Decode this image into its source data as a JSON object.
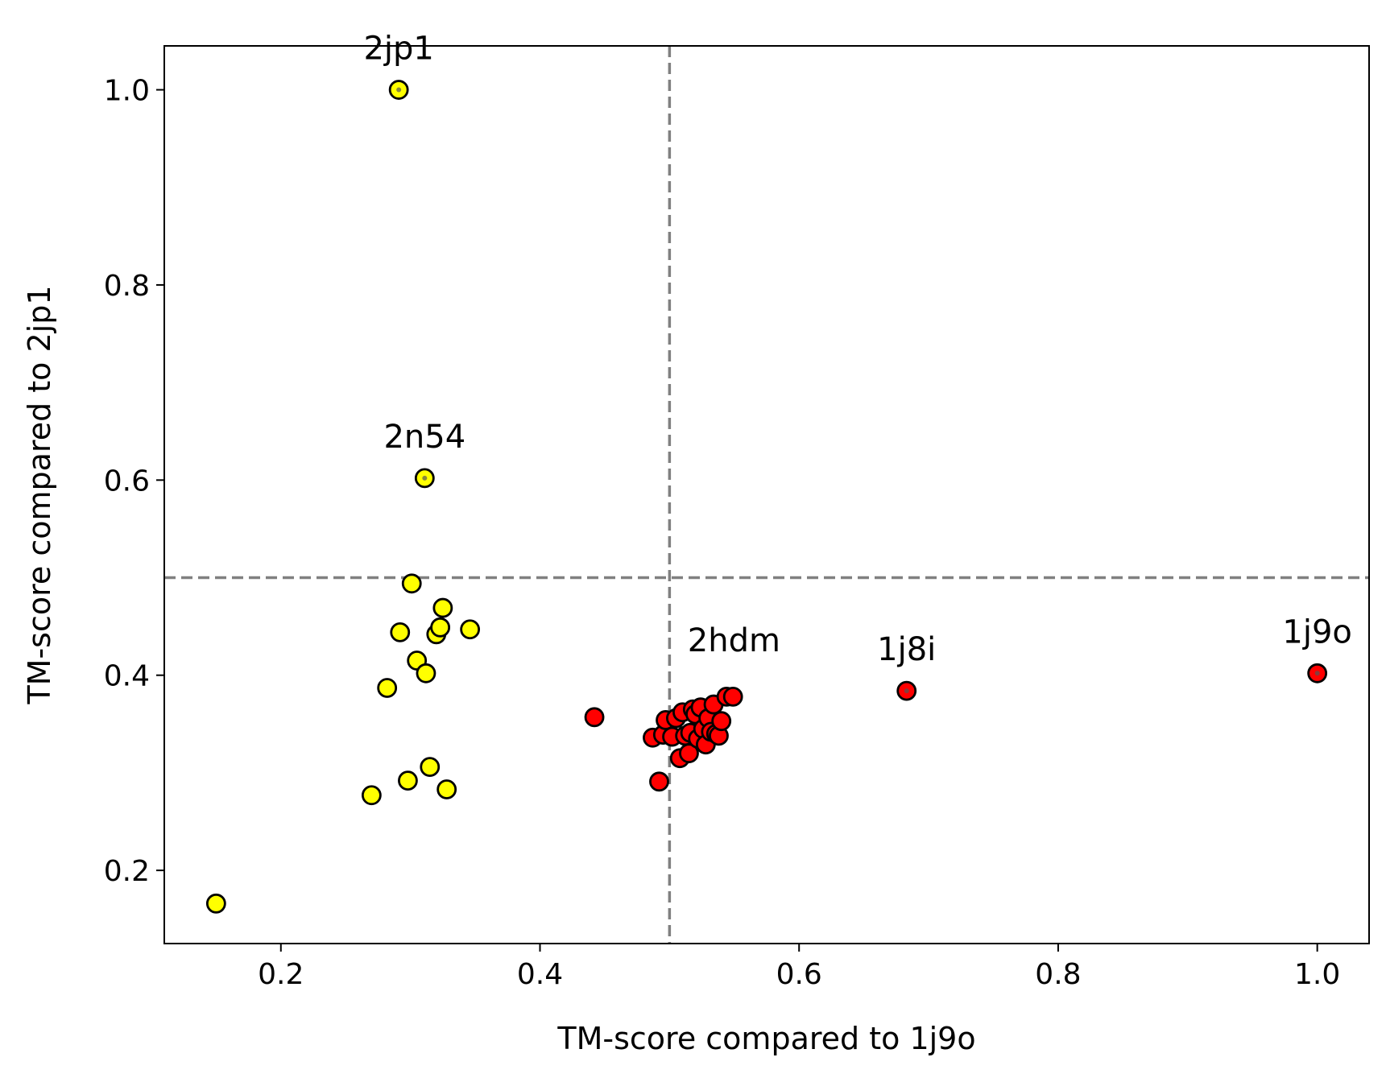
{
  "chart_data": {
    "type": "scatter",
    "xlabel": "TM-score compared to 1j9o",
    "ylabel": "TM-score compared to 2jp1",
    "xlim": [
      0.11,
      1.04
    ],
    "ylim": [
      0.125,
      1.045
    ],
    "xticks": [
      0.2,
      0.4,
      0.6,
      0.8,
      1.0
    ],
    "xtick_labels": [
      "0.2",
      "0.4",
      "0.6",
      "0.8",
      "1.0"
    ],
    "yticks": [
      0.2,
      0.4,
      0.6,
      0.8,
      1.0
    ],
    "ytick_labels": [
      "0.2",
      "0.4",
      "0.6",
      "0.8",
      "1.0"
    ],
    "grid": false,
    "reference_lines": {
      "x": 0.5,
      "y": 0.5,
      "style": "dashed",
      "color": "#808080"
    },
    "series": [
      {
        "color": "#ffff00",
        "points": [
          [
            0.15,
            0.166
          ],
          [
            0.27,
            0.277
          ],
          [
            0.282,
            0.387
          ],
          [
            0.292,
            0.444
          ],
          [
            0.298,
            0.292
          ],
          [
            0.301,
            0.494
          ],
          [
            0.305,
            0.415
          ],
          [
            0.312,
            0.402
          ],
          [
            0.315,
            0.306
          ],
          [
            0.32,
            0.442
          ],
          [
            0.323,
            0.449
          ],
          [
            0.325,
            0.469
          ],
          [
            0.328,
            0.283
          ],
          [
            0.346,
            0.447
          ],
          [
            0.291,
            1.0
          ],
          [
            0.311,
            0.602
          ]
        ]
      },
      {
        "color": "#ff0000",
        "points": [
          [
            0.442,
            0.357
          ],
          [
            0.487,
            0.336
          ],
          [
            0.492,
            0.291
          ],
          [
            0.495,
            0.339
          ],
          [
            0.497,
            0.354
          ],
          [
            0.502,
            0.337
          ],
          [
            0.505,
            0.356
          ],
          [
            0.508,
            0.315
          ],
          [
            0.51,
            0.362
          ],
          [
            0.512,
            0.338
          ],
          [
            0.515,
            0.32
          ],
          [
            0.516,
            0.341
          ],
          [
            0.518,
            0.365
          ],
          [
            0.52,
            0.36
          ],
          [
            0.522,
            0.335
          ],
          [
            0.524,
            0.367
          ],
          [
            0.526,
            0.345
          ],
          [
            0.528,
            0.329
          ],
          [
            0.53,
            0.356
          ],
          [
            0.532,
            0.342
          ],
          [
            0.534,
            0.37
          ],
          [
            0.536,
            0.34
          ],
          [
            0.538,
            0.338
          ],
          [
            0.54,
            0.353
          ],
          [
            0.544,
            0.378
          ],
          [
            0.549,
            0.378
          ],
          [
            0.683,
            0.384
          ],
          [
            1.0,
            0.402
          ]
        ]
      }
    ],
    "reference_markers": [
      [
        0.291,
        1.0
      ],
      [
        0.311,
        0.602
      ],
      [
        0.683,
        0.384
      ],
      [
        1.0,
        0.402
      ]
    ],
    "annotations": [
      {
        "text": "2jp1",
        "x": 0.291,
        "y": 1.0
      },
      {
        "text": "2n54",
        "x": 0.311,
        "y": 0.602
      },
      {
        "text": "2hdm",
        "x": 0.5,
        "y": 0.36
      },
      {
        "text": "1j8i",
        "x": 0.683,
        "y": 0.384
      },
      {
        "text": "1j9o",
        "x": 1.0,
        "y": 0.402
      }
    ]
  }
}
